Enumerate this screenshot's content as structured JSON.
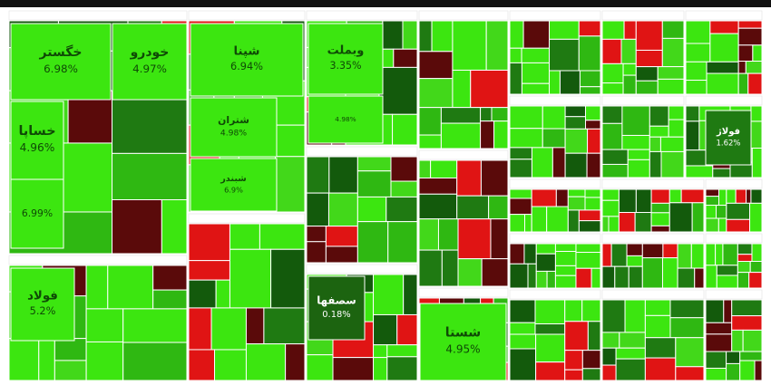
{
  "chart_data": {
    "type": "treemap",
    "labels": [
      "خگستر",
      "خودرو",
      "خساپا",
      null,
      "فولاد",
      "شپنا",
      "شتران",
      "شبندر",
      "وبملت",
      null,
      "سصفها",
      "شستا",
      "فولاژ"
    ],
    "values": [
      6.98,
      4.97,
      4.96,
      6.99,
      5.2,
      6.94,
      4.98,
      6.9,
      3.35,
      4.98,
      0.18,
      4.95,
      1.62
    ],
    "value_labels": [
      "6.98%",
      "4.97%",
      "4.96%",
      "6.99%",
      "5.2%",
      "6.94%",
      "4.98%",
      "6.9%",
      "3.35%",
      "4.98%",
      "0.18%",
      "4.95%",
      "1.62%"
    ],
    "colors": [
      "#3ce610",
      "#3ce610",
      "#3ce610",
      "#3ce610",
      "#3ce610",
      "#3ce610",
      "#3ce610",
      "#3ce610",
      "#3ce610",
      "#3ce610",
      "#1c6410",
      "#3ce610",
      "#1f7a12"
    ]
  }
}
